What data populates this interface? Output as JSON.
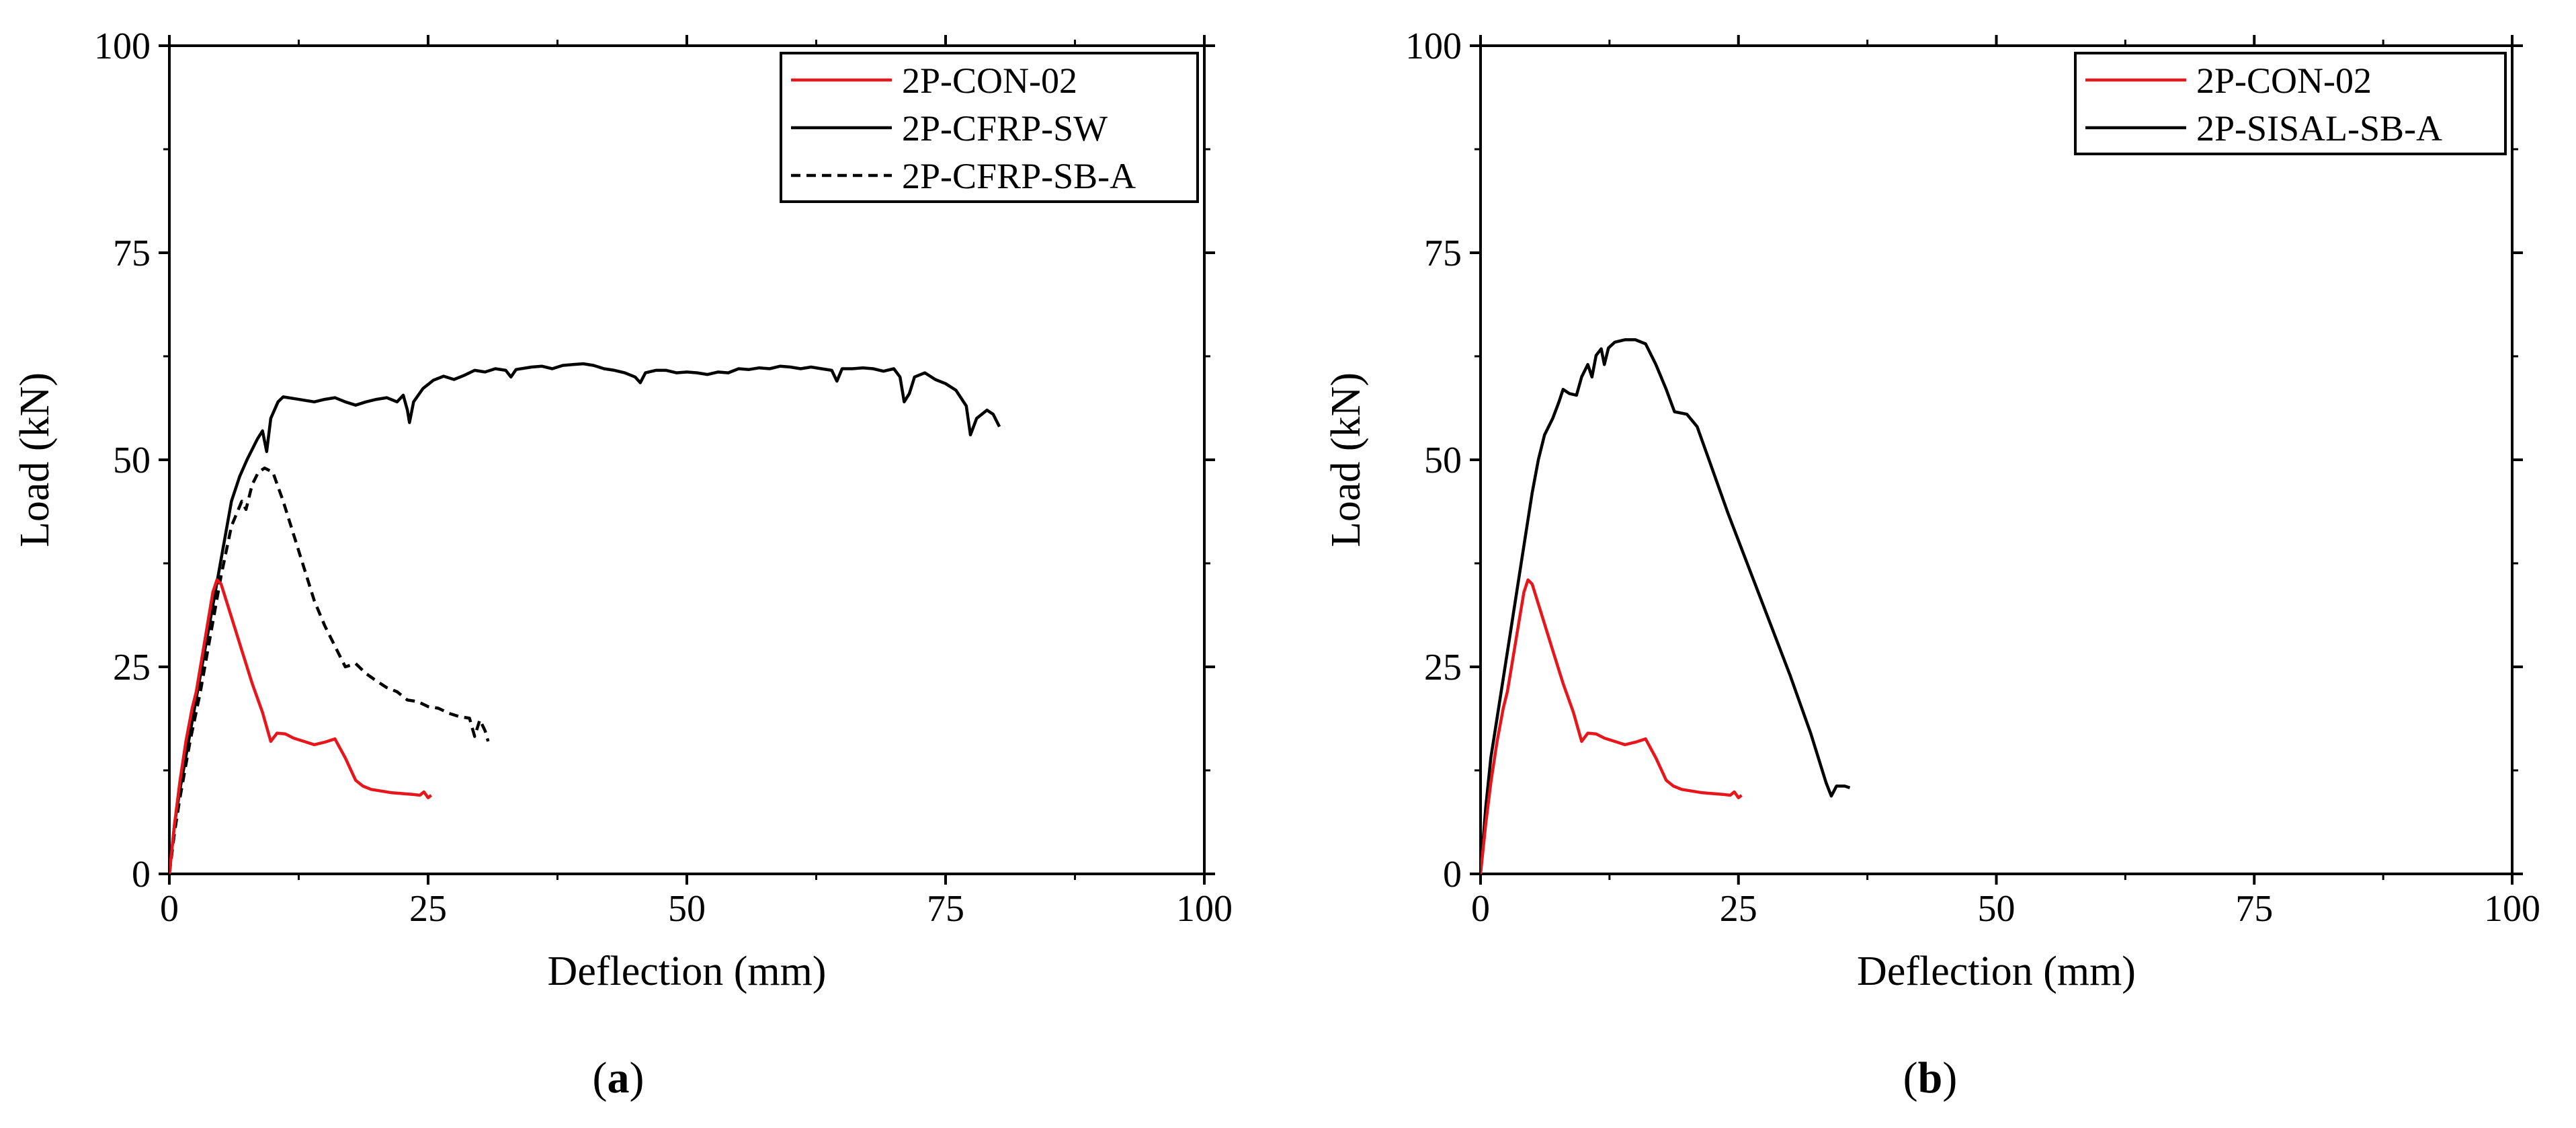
{
  "chart_data": [
    {
      "type": "line",
      "panel": "a",
      "caption": {
        "open": "(",
        "letter": "a",
        "close": ")"
      },
      "xlabel": "Deflection (mm)",
      "ylabel": "Load (kN)",
      "xlim": [
        0,
        100
      ],
      "ylim": [
        0,
        100
      ],
      "xticks": [
        0,
        25,
        50,
        75,
        100
      ],
      "yticks": [
        0,
        25,
        50,
        75,
        100
      ],
      "xtick_labels": [
        "0",
        "25",
        "50",
        "75",
        "100"
      ],
      "ytick_labels": [
        "0",
        "25",
        "50",
        "75",
        "100"
      ],
      "grid": false,
      "legend_position": "top-right",
      "series": [
        {
          "name": "2P-CON-02",
          "color": "#e8161b",
          "style": "solid",
          "points": [
            [
              0,
              0
            ],
            [
              0.5,
              6
            ],
            [
              1,
              11
            ],
            [
              1.6,
              16
            ],
            [
              2.2,
              20
            ],
            [
              2.6,
              22
            ],
            [
              3,
              25
            ],
            [
              3.4,
              28
            ],
            [
              3.8,
              31
            ],
            [
              4.2,
              34
            ],
            [
              4.6,
              35.5
            ],
            [
              5,
              35
            ],
            [
              6,
              31
            ],
            [
              7,
              27
            ],
            [
              8,
              23
            ],
            [
              9,
              19.5
            ],
            [
              9.8,
              16
            ],
            [
              10.4,
              17
            ],
            [
              11.2,
              16.9
            ],
            [
              12,
              16.4
            ],
            [
              13,
              16
            ],
            [
              14,
              15.6
            ],
            [
              15,
              15.9
            ],
            [
              16,
              16.3
            ],
            [
              17,
              14
            ],
            [
              18,
              11.3
            ],
            [
              18.7,
              10.6
            ],
            [
              19.5,
              10.2
            ],
            [
              20.5,
              10
            ],
            [
              21.5,
              9.8
            ],
            [
              22.5,
              9.7
            ],
            [
              23.5,
              9.6
            ],
            [
              24.2,
              9.5
            ],
            [
              24.6,
              9.9
            ],
            [
              25,
              9.2
            ],
            [
              25.3,
              9.5
            ]
          ]
        },
        {
          "name": "2P-CFRP-SW",
          "color": "#000000",
          "style": "solid",
          "points": [
            [
              0,
              0
            ],
            [
              0.5,
              6
            ],
            [
              1,
              10
            ],
            [
              2,
              17
            ],
            [
              3,
              24
            ],
            [
              4,
              31
            ],
            [
              5,
              38
            ],
            [
              6,
              45
            ],
            [
              6.8,
              48
            ],
            [
              7.5,
              50
            ],
            [
              8.5,
              52.5
            ],
            [
              9,
              53.5
            ],
            [
              9.4,
              51
            ],
            [
              9.8,
              55
            ],
            [
              10.5,
              57
            ],
            [
              11,
              57.6
            ],
            [
              12,
              57.4
            ],
            [
              13,
              57.2
            ],
            [
              14,
              57
            ],
            [
              15,
              57.3
            ],
            [
              16,
              57.5
            ],
            [
              17,
              57
            ],
            [
              18,
              56.6
            ],
            [
              19,
              57
            ],
            [
              20,
              57.3
            ],
            [
              21,
              57.5
            ],
            [
              22,
              57
            ],
            [
              22.6,
              57.8
            ],
            [
              23,
              56
            ],
            [
              23.2,
              54.5
            ],
            [
              23.6,
              57
            ],
            [
              24.5,
              58.6
            ],
            [
              25.5,
              59.6
            ],
            [
              26.5,
              60.1
            ],
            [
              27.5,
              59.7
            ],
            [
              28.5,
              60.2
            ],
            [
              29.5,
              60.8
            ],
            [
              30.5,
              60.6
            ],
            [
              31.5,
              61
            ],
            [
              32.5,
              60.8
            ],
            [
              33,
              60
            ],
            [
              33.5,
              60.9
            ],
            [
              35,
              61.2
            ],
            [
              36,
              61.3
            ],
            [
              37,
              61
            ],
            [
              38,
              61.4
            ],
            [
              39,
              61.5
            ],
            [
              40,
              61.6
            ],
            [
              41,
              61.4
            ],
            [
              42,
              61
            ],
            [
              43,
              60.8
            ],
            [
              44,
              60.5
            ],
            [
              45,
              60
            ],
            [
              45.5,
              59.3
            ],
            [
              46,
              60.5
            ],
            [
              47,
              60.8
            ],
            [
              48,
              60.8
            ],
            [
              49,
              60.5
            ],
            [
              50,
              60.6
            ],
            [
              51,
              60.5
            ],
            [
              52,
              60.3
            ],
            [
              53,
              60.6
            ],
            [
              54,
              60.5
            ],
            [
              55,
              61
            ],
            [
              56,
              60.9
            ],
            [
              57,
              61.1
            ],
            [
              58,
              61
            ],
            [
              59,
              61.3
            ],
            [
              60,
              61.2
            ],
            [
              61,
              61
            ],
            [
              62,
              61.2
            ],
            [
              63,
              61
            ],
            [
              64,
              60.8
            ],
            [
              64.5,
              59.5
            ],
            [
              65,
              61
            ],
            [
              66,
              61
            ],
            [
              67,
              61.1
            ],
            [
              68,
              61
            ],
            [
              69,
              60.7
            ],
            [
              70,
              61
            ],
            [
              70.6,
              60
            ],
            [
              71,
              57
            ],
            [
              71.5,
              58
            ],
            [
              72,
              60
            ],
            [
              73,
              60.5
            ],
            [
              74,
              59.7
            ],
            [
              75,
              59.2
            ],
            [
              76,
              58.4
            ],
            [
              77,
              56.5
            ],
            [
              77.4,
              53
            ],
            [
              78,
              55
            ],
            [
              79,
              56
            ],
            [
              79.6,
              55.5
            ],
            [
              80.2,
              54
            ]
          ]
        },
        {
          "name": "2P-CFRP-SB-A",
          "color": "#000000",
          "style": "dashed",
          "points": [
            [
              0,
              0
            ],
            [
              0.5,
              5
            ],
            [
              1,
              9
            ],
            [
              2,
              16
            ],
            [
              3,
              22
            ],
            [
              4,
              29
            ],
            [
              5,
              36
            ],
            [
              6,
              42
            ],
            [
              7,
              45
            ],
            [
              7.4,
              44
            ],
            [
              8,
              47
            ],
            [
              8.6,
              48.5
            ],
            [
              9.2,
              49
            ],
            [
              10,
              48.5
            ],
            [
              11,
              45
            ],
            [
              12,
              41
            ],
            [
              13,
              37
            ],
            [
              14,
              33
            ],
            [
              15,
              30
            ],
            [
              16,
              27.5
            ],
            [
              17,
              25
            ],
            [
              18,
              25.4
            ],
            [
              19,
              24.2
            ],
            [
              20,
              23.3
            ],
            [
              21,
              22.5
            ],
            [
              22,
              22
            ],
            [
              23,
              21
            ],
            [
              24,
              20.8
            ],
            [
              25,
              20.2
            ],
            [
              26,
              20
            ],
            [
              27,
              19.4
            ],
            [
              28,
              19
            ],
            [
              29,
              18.8
            ],
            [
              29.5,
              16.6
            ],
            [
              30,
              18.6
            ],
            [
              30.5,
              17.3
            ],
            [
              30.8,
              16
            ]
          ]
        }
      ]
    },
    {
      "type": "line",
      "panel": "b",
      "caption": {
        "open": "(",
        "letter": "b",
        "close": ")"
      },
      "xlabel": "Deflection (mm)",
      "ylabel": "Load (kN)",
      "xlim": [
        0,
        100
      ],
      "ylim": [
        0,
        100
      ],
      "xticks": [
        0,
        25,
        50,
        75,
        100
      ],
      "yticks": [
        0,
        25,
        50,
        75,
        100
      ],
      "xtick_labels": [
        "0",
        "25",
        "50",
        "75",
        "100"
      ],
      "ytick_labels": [
        "0",
        "25",
        "50",
        "75",
        "100"
      ],
      "grid": false,
      "legend_position": "top-right",
      "series": [
        {
          "name": "2P-CON-02",
          "color": "#e8161b",
          "style": "solid",
          "points": [
            [
              0,
              0
            ],
            [
              0.5,
              6
            ],
            [
              1,
              11
            ],
            [
              1.6,
              16
            ],
            [
              2.2,
              20
            ],
            [
              2.6,
              22
            ],
            [
              3,
              25
            ],
            [
              3.4,
              28
            ],
            [
              3.8,
              31
            ],
            [
              4.2,
              34
            ],
            [
              4.6,
              35.5
            ],
            [
              5,
              35
            ],
            [
              6,
              31
            ],
            [
              7,
              27
            ],
            [
              8,
              23
            ],
            [
              9,
              19.5
            ],
            [
              9.8,
              16
            ],
            [
              10.4,
              17
            ],
            [
              11.2,
              16.9
            ],
            [
              12,
              16.4
            ],
            [
              13,
              16
            ],
            [
              14,
              15.6
            ],
            [
              15,
              15.9
            ],
            [
              16,
              16.3
            ],
            [
              17,
              14
            ],
            [
              18,
              11.3
            ],
            [
              18.7,
              10.6
            ],
            [
              19.5,
              10.2
            ],
            [
              20.5,
              10
            ],
            [
              21.5,
              9.8
            ],
            [
              22.5,
              9.7
            ],
            [
              23.5,
              9.6
            ],
            [
              24.2,
              9.5
            ],
            [
              24.6,
              9.9
            ],
            [
              25,
              9.2
            ],
            [
              25.3,
              9.5
            ]
          ]
        },
        {
          "name": "2P-SISAL-SB-A",
          "color": "#000000",
          "style": "solid",
          "points": [
            [
              0,
              0
            ],
            [
              0.5,
              8
            ],
            [
              1,
              14
            ],
            [
              2,
              22
            ],
            [
              3,
              30
            ],
            [
              4,
              38
            ],
            [
              5,
              46
            ],
            [
              5.6,
              50
            ],
            [
              6.2,
              53
            ],
            [
              7,
              55
            ],
            [
              7.6,
              57
            ],
            [
              8,
              58.5
            ],
            [
              8.6,
              58
            ],
            [
              9.3,
              57.8
            ],
            [
              9.8,
              60
            ],
            [
              10.4,
              61.5
            ],
            [
              10.8,
              60
            ],
            [
              11.2,
              62.6
            ],
            [
              11.7,
              63.4
            ],
            [
              12,
              61.5
            ],
            [
              12.4,
              63.5
            ],
            [
              13,
              64.2
            ],
            [
              14,
              64.5
            ],
            [
              15,
              64.5
            ],
            [
              16,
              64
            ],
            [
              17,
              61.5
            ],
            [
              18,
              58.5
            ],
            [
              18.8,
              55.8
            ],
            [
              20,
              55.5
            ],
            [
              21,
              54
            ],
            [
              22,
              50.5
            ],
            [
              24,
              43.5
            ],
            [
              26,
              37
            ],
            [
              28,
              30.5
            ],
            [
              30,
              24
            ],
            [
              32,
              17
            ],
            [
              33.5,
              11
            ],
            [
              34,
              9.4
            ],
            [
              34.5,
              10.6
            ],
            [
              35.3,
              10.6
            ],
            [
              35.8,
              10.4
            ]
          ]
        }
      ]
    }
  ]
}
